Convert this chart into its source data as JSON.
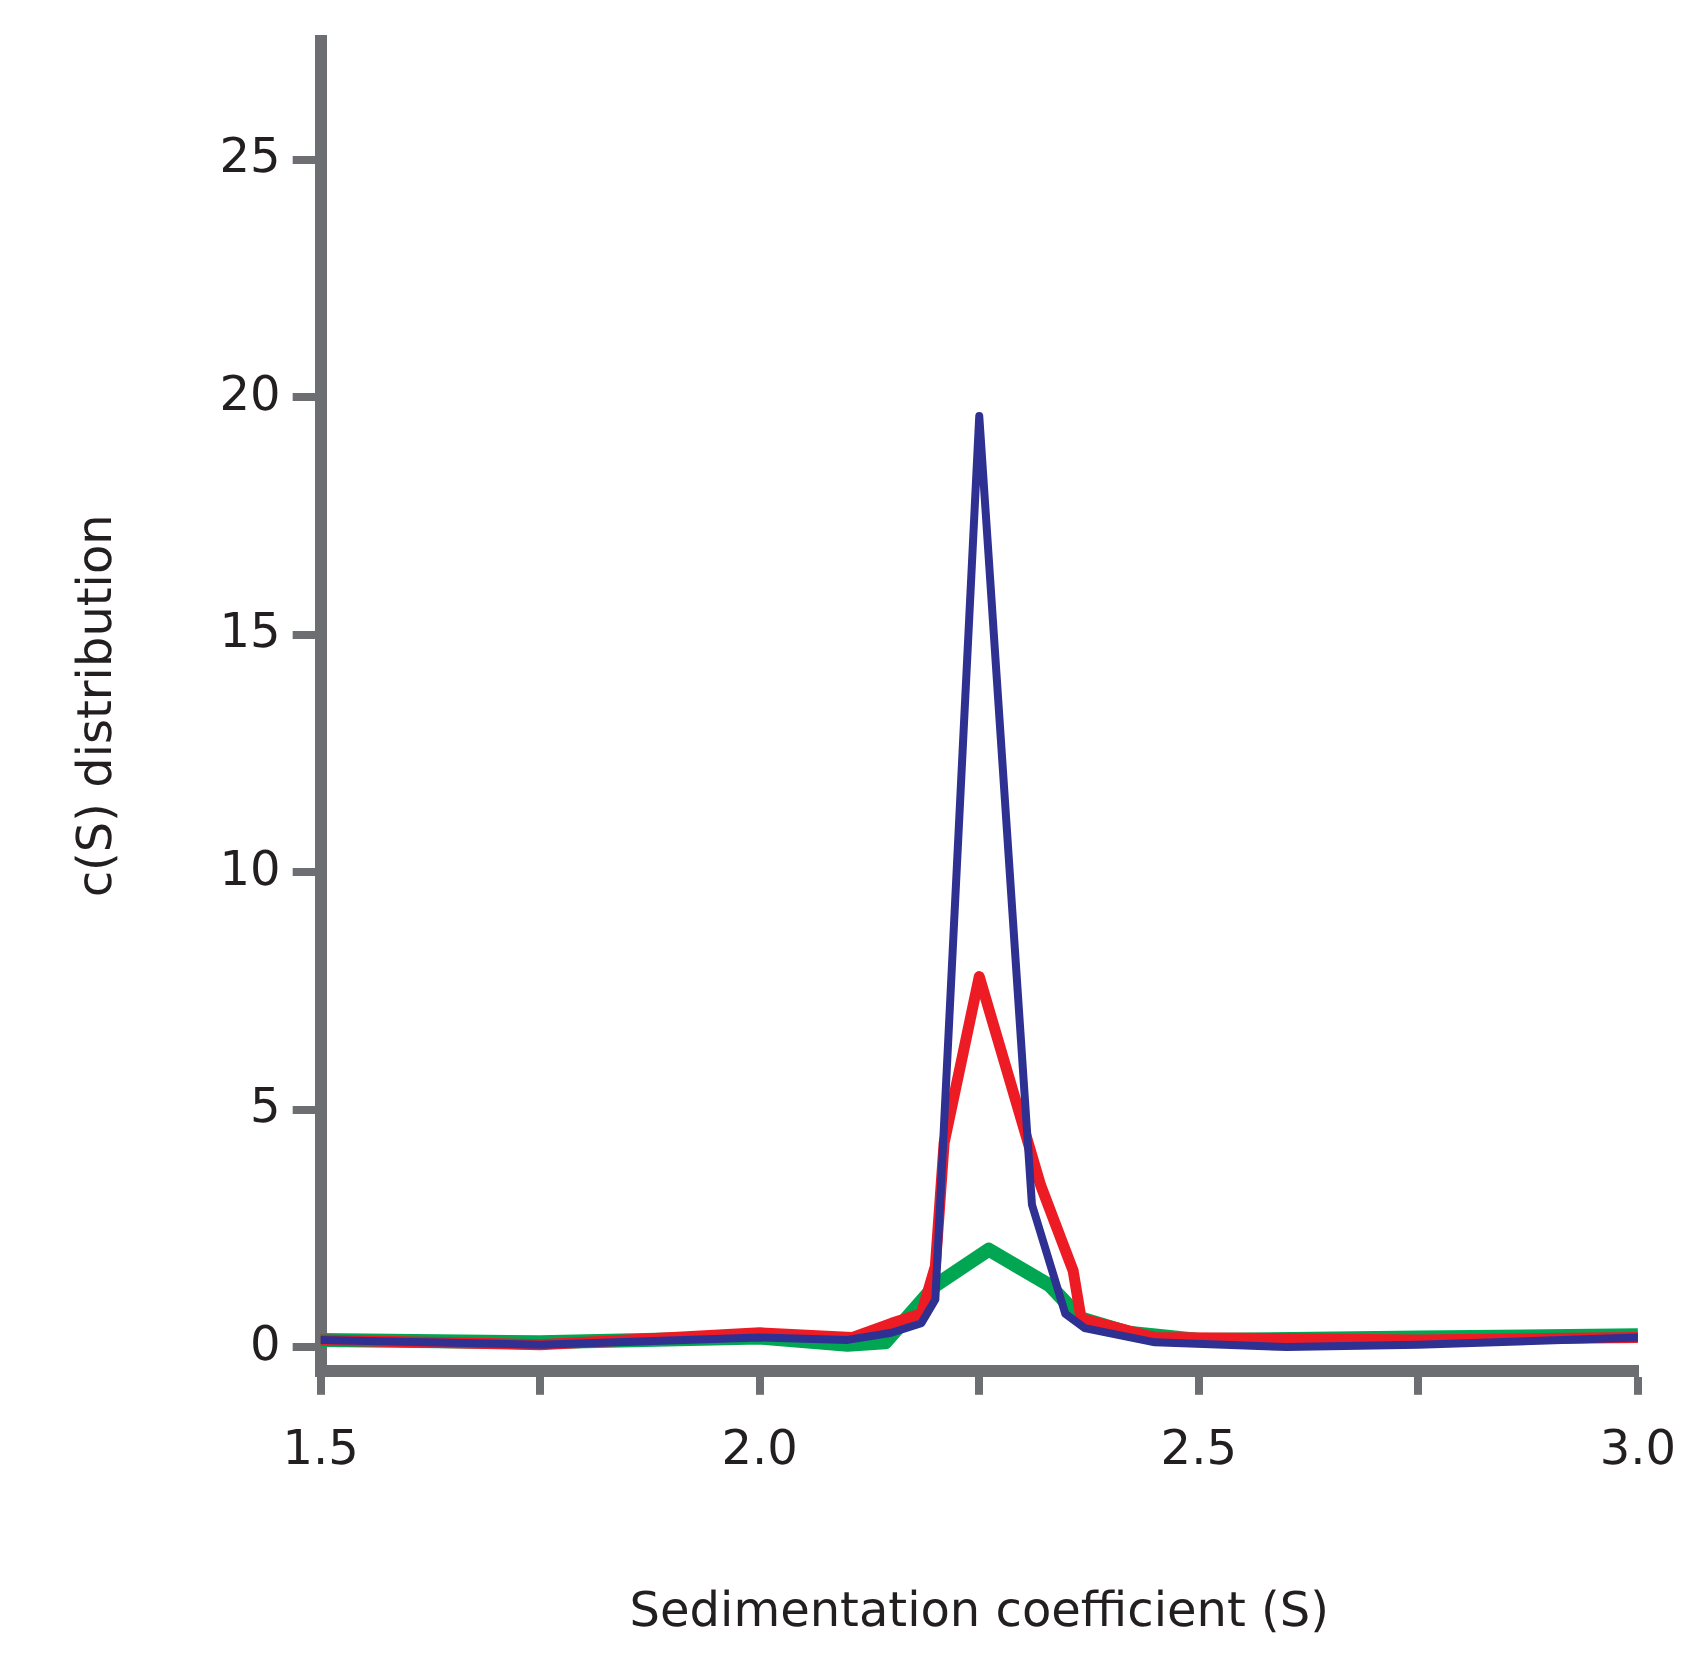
{
  "chart_data": {
    "type": "line",
    "xlabel": "Sedimentation coefficient (S)",
    "ylabel": "c(S) distribution",
    "xlim": [
      1.5,
      3.0
    ],
    "xticks": [
      {
        "value": 1.5,
        "label": "1.5"
      },
      {
        "value": 1.75,
        "label": null
      },
      {
        "value": 2.0,
        "label": "2.0"
      },
      {
        "value": 2.25,
        "label": null
      },
      {
        "value": 2.5,
        "label": "2.5"
      },
      {
        "value": 2.75,
        "label": null
      },
      {
        "value": 3.0,
        "label": "3.0"
      }
    ],
    "ylim": [
      -0.5,
      27.5
    ],
    "yticks": [
      0,
      5,
      10,
      15,
      20,
      25
    ],
    "grid": false,
    "legend": false,
    "marker": "none",
    "line_style": "solid",
    "series": [
      {
        "color": "#2e3192",
        "x": [
          1.5,
          1.75,
          2.0,
          2.1,
          2.15,
          2.184,
          2.2,
          2.25,
          2.31,
          2.348,
          2.37,
          2.45,
          2.6,
          2.75,
          3.0
        ],
        "values": [
          0.15,
          0.05,
          0.2,
          0.15,
          0.3,
          0.5,
          1.0,
          19.6,
          3.0,
          0.7,
          0.4,
          0.1,
          0.0,
          0.05,
          0.2
        ]
      },
      {
        "color": "#ed1c24",
        "x": [
          1.5,
          1.75,
          2.0,
          2.105,
          2.15,
          2.184,
          2.2,
          2.21,
          2.25,
          2.32,
          2.357,
          2.366,
          2.45,
          2.75,
          3.0
        ],
        "values": [
          0.15,
          0.05,
          0.3,
          0.2,
          0.5,
          0.7,
          1.7,
          4.3,
          7.8,
          3.4,
          1.6,
          0.6,
          0.2,
          0.15,
          0.2
        ]
      },
      {
        "color": "#00a651",
        "x": [
          1.5,
          1.75,
          2.0,
          2.1,
          2.143,
          2.2,
          2.261,
          2.33,
          2.366,
          2.42,
          2.5,
          2.75,
          3.0
        ],
        "values": [
          0.15,
          0.1,
          0.2,
          0.05,
          0.1,
          1.3,
          2.05,
          1.3,
          0.6,
          0.3,
          0.15,
          0.2,
          0.25
        ]
      }
    ]
  }
}
